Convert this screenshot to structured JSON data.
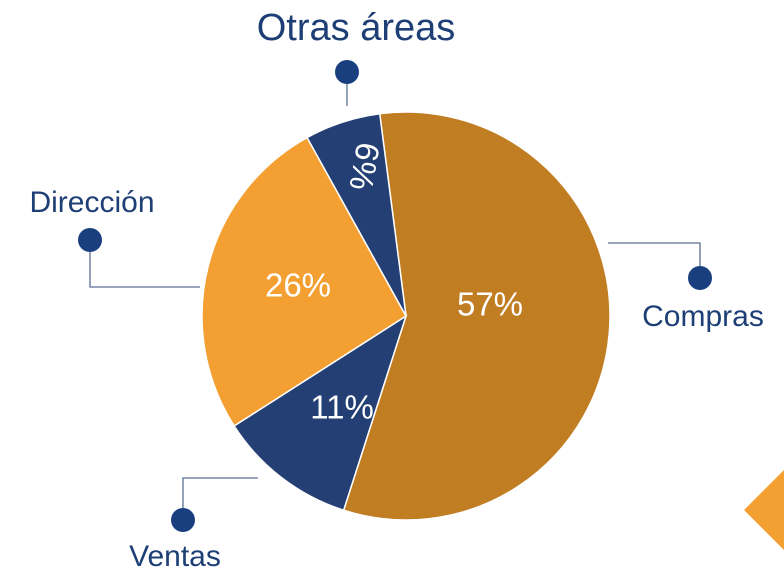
{
  "chart_data": {
    "type": "pie",
    "categories": [
      "Compras",
      "Ventas",
      "Dirección",
      "Otras áreas"
    ],
    "values": [
      57,
      11,
      26,
      6
    ],
    "value_labels": [
      "57%",
      "11%",
      "26%",
      "6%"
    ],
    "colors": [
      "#c17d22",
      "#233f73",
      "#f39f32",
      "#233f73"
    ]
  }
}
